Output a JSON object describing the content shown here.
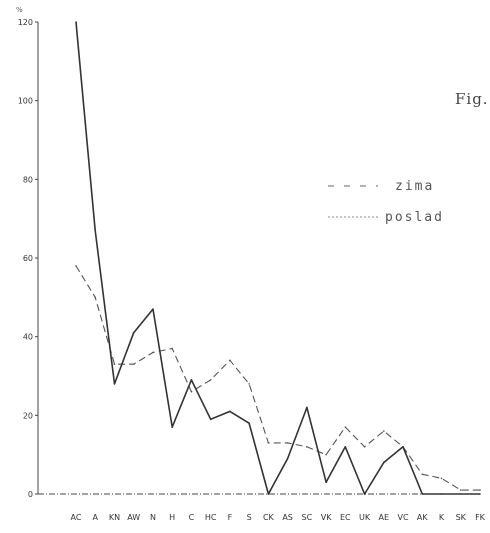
{
  "chart_data": {
    "type": "line",
    "y_unit": "%",
    "figure_label": "Fig.",
    "categories": [
      "AC",
      "A",
      "KN",
      "AW",
      "N",
      "H",
      "C",
      "HC",
      "F",
      "S",
      "CK",
      "AS",
      "SC",
      "VK",
      "EC",
      "UK",
      "AE",
      "VC",
      "AK",
      "K",
      "SK",
      "FK"
    ],
    "y_ticks": [
      "0",
      "20",
      "40",
      "60",
      "80",
      "100",
      "120"
    ],
    "ylim": [
      0,
      120
    ],
    "series": [
      {
        "name": "zima",
        "style": "dashed",
        "color": "#555555",
        "values": [
          58,
          50,
          33,
          33,
          36,
          37,
          26,
          29,
          34,
          28,
          13,
          13,
          12,
          10,
          17,
          12,
          16,
          12,
          5,
          4,
          1,
          1
        ]
      },
      {
        "name": "poslad",
        "style": "solid",
        "color": "#333333",
        "values": [
          120,
          67,
          28,
          41,
          47,
          17,
          29,
          19,
          21,
          18,
          0,
          9,
          22,
          3,
          12,
          0,
          8,
          12,
          0,
          0,
          0,
          0
        ]
      }
    ],
    "grid": false
  }
}
